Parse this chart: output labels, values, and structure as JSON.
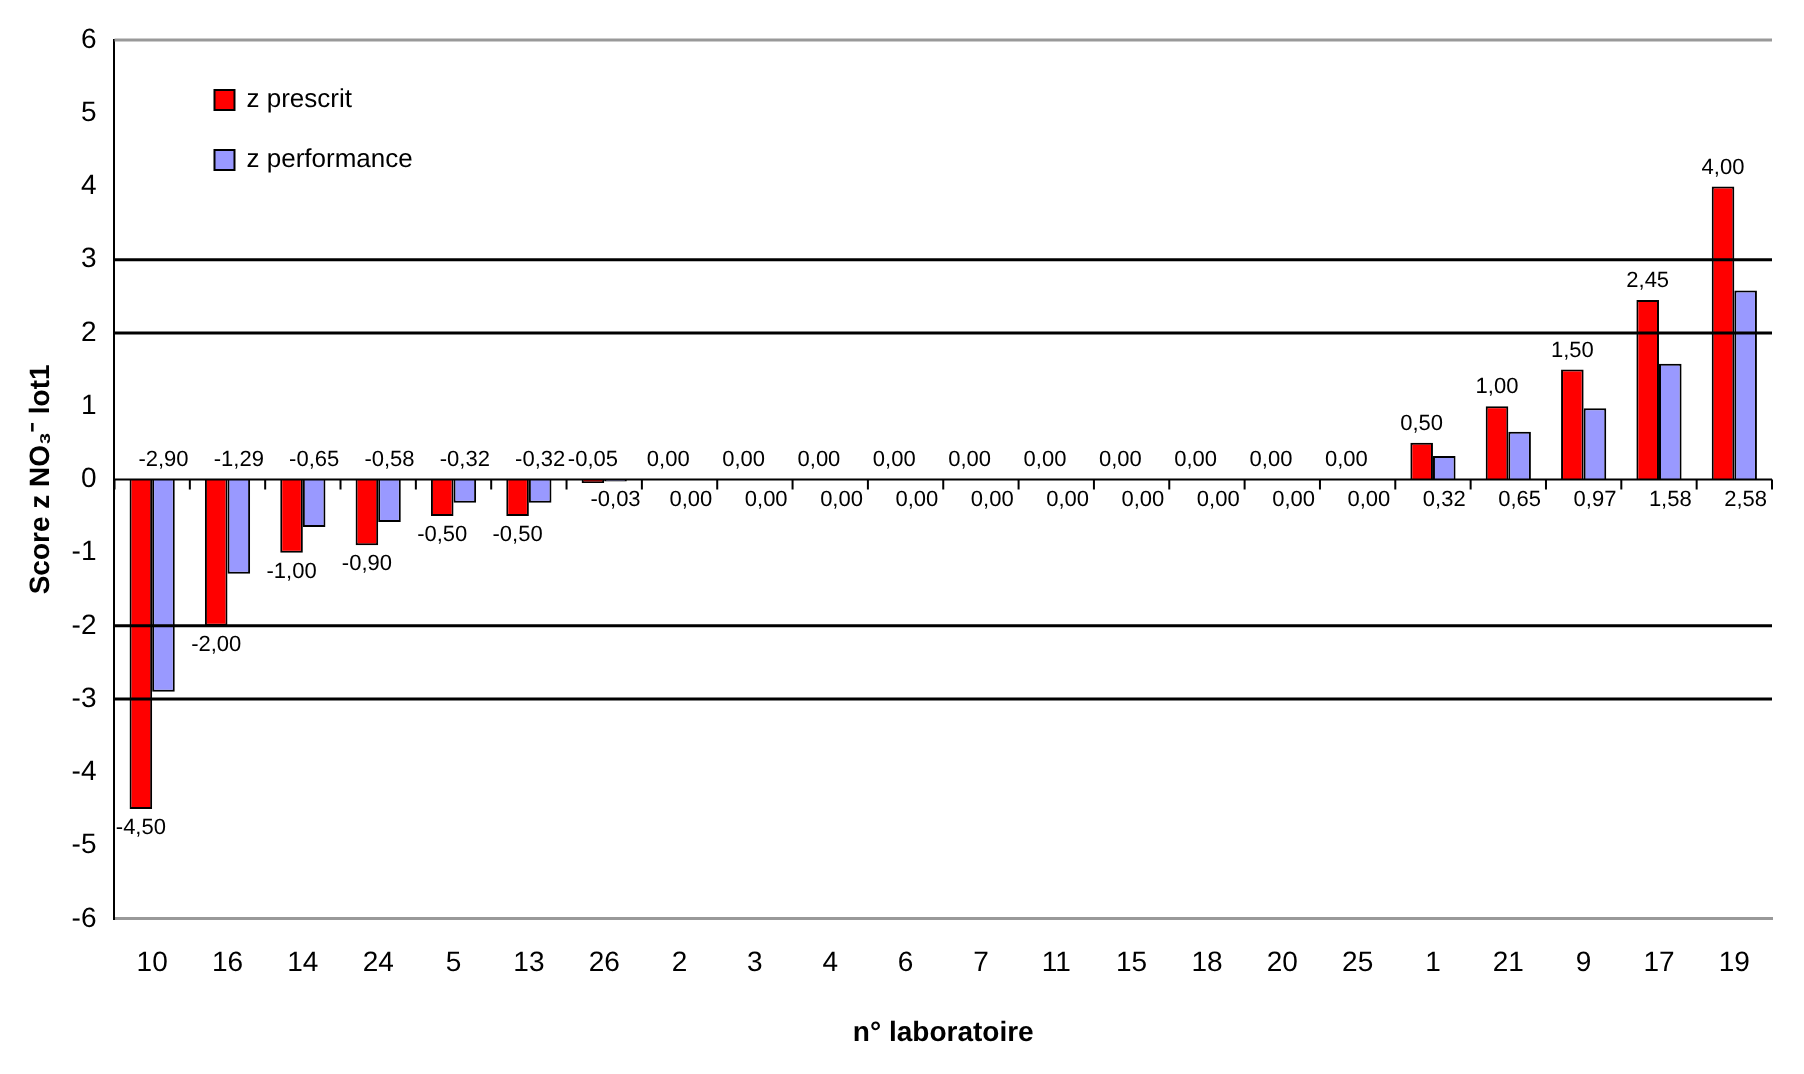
{
  "chart_data": {
    "type": "bar",
    "xlabel": "n° laboratoire",
    "ylabel": "Score z NO₃⁻ lot1",
    "categories": [
      "10",
      "16",
      "14",
      "24",
      "5",
      "13",
      "26",
      "2",
      "3",
      "4",
      "6",
      "7",
      "11",
      "15",
      "18",
      "20",
      "25",
      "1",
      "21",
      "9",
      "17",
      "19"
    ],
    "series": [
      {
        "name": "z prescrit",
        "color": "#ff0000",
        "values": [
          -4.5,
          -2,
          -1,
          -0.9,
          -0.5,
          -0.5,
          -0.05,
          0,
          0,
          0,
          0,
          0,
          0,
          0,
          0,
          0,
          0,
          0.5,
          1,
          1.5,
          2.45,
          4
        ],
        "value_labels": [
          "-4,50",
          "-2,00",
          "-1,00",
          "-0,90",
          "-0,50",
          "-0,50",
          "-0,05",
          "0,00",
          "0,00",
          "0,00",
          "0,00",
          "0,00",
          "0,00",
          "0,00",
          "0,00",
          "0,00",
          "0,00",
          "0,50",
          "1,00",
          "1,50",
          "2,45",
          "4,00"
        ]
      },
      {
        "name": "z performance",
        "color": "#9999ff",
        "values": [
          -2.9,
          -1.29,
          -0.65,
          -0.58,
          -0.32,
          -0.32,
          -0.03,
          0,
          0,
          0,
          0,
          0,
          0,
          0,
          0,
          0,
          0,
          0.32,
          0.65,
          0.97,
          1.58,
          2.58
        ],
        "value_labels": [
          "-2,90",
          "-1,29",
          "-0,65",
          "-0,58",
          "-0,32",
          "-0,32",
          "-0,03",
          "0,00",
          "0,00",
          "0,00",
          "0,00",
          "0,00",
          "0,00",
          "0,00",
          "0,00",
          "0,00",
          "0,00",
          "0,32",
          "0,65",
          "0,97",
          "1,58",
          "2,58"
        ]
      }
    ],
    "ylim": [
      -6,
      6
    ],
    "yticks": [
      -6,
      -5,
      -4,
      -3,
      -2,
      -1,
      0,
      1,
      2,
      3,
      4,
      5,
      6
    ],
    "ref_lines": [
      {
        "axis": "y",
        "value": 3,
        "color": "#000000"
      },
      {
        "axis": "y",
        "value": 2,
        "color": "#000000"
      },
      {
        "axis": "y",
        "value": -2,
        "color": "#000000"
      },
      {
        "axis": "y",
        "value": -3,
        "color": "#000000"
      }
    ],
    "grid": false,
    "legend": "top left"
  }
}
